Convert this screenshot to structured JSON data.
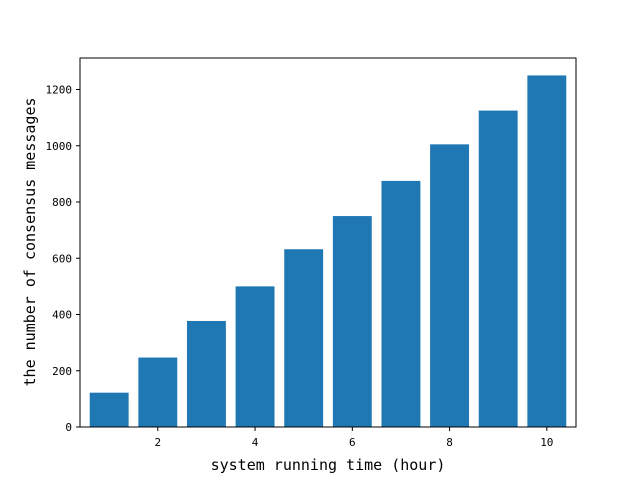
{
  "chart_data": {
    "type": "bar",
    "title": "",
    "xlabel": "system running time (hour)",
    "ylabel": "the number of consensus messages",
    "x": [
      1,
      2,
      3,
      4,
      5,
      6,
      7,
      8,
      9,
      10
    ],
    "values": [
      122,
      247,
      377,
      500,
      632,
      750,
      875,
      1005,
      1125,
      1250
    ],
    "xlim": [
      0.4,
      10.6
    ],
    "ylim": [
      0,
      1312
    ],
    "xticks": [
      2,
      4,
      6,
      8,
      10
    ],
    "yticks": [
      0,
      200,
      400,
      600,
      800,
      1000,
      1200
    ],
    "bar_color": "#1f77b4",
    "grid": false,
    "legend": "none"
  }
}
